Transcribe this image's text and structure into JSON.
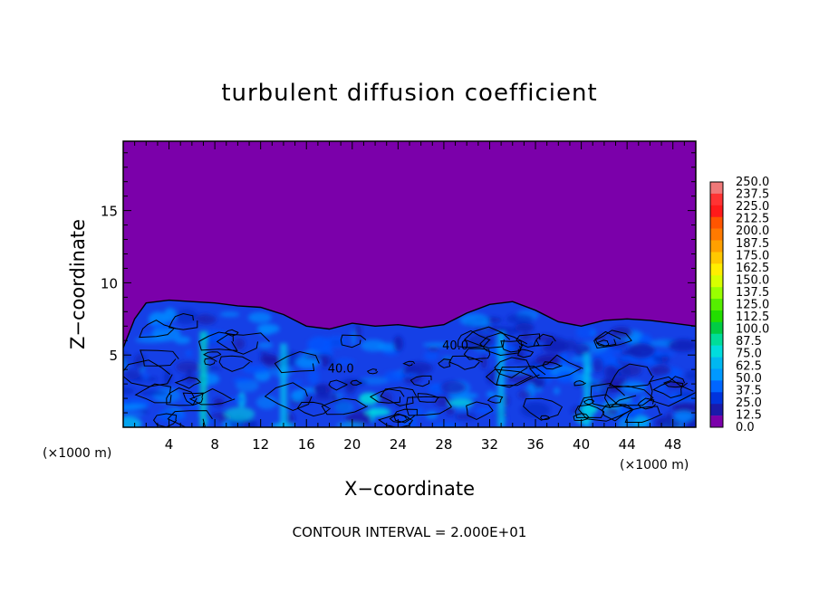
{
  "chart_data": {
    "type": "heatmap",
    "title": "turbulent diffusion coefficient",
    "xlabel": "X−coordinate",
    "ylabel": "Z−coordinate",
    "x_unit_left": "(×1000 m)",
    "x_unit_right": "(×1000 m)",
    "xlim": [
      0,
      50
    ],
    "ylim": [
      0,
      19.8
    ],
    "x_ticks": [
      4,
      8,
      12,
      16,
      20,
      24,
      28,
      32,
      36,
      40,
      44,
      48
    ],
    "y_ticks": [
      5,
      10,
      15
    ],
    "colorbar_levels": [
      "250.0",
      "237.5",
      "225.0",
      "212.5",
      "200.0",
      "187.5",
      "175.0",
      "162.5",
      "150.0",
      "137.5",
      "125.0",
      "112.5",
      "100.0",
      "87.5",
      "75.0",
      "62.5",
      "50.0",
      "37.5",
      "25.0",
      "12.5",
      "0.0"
    ],
    "colorbar_colors": [
      "#f07878",
      "#ff3333",
      "#ff1a1a",
      "#ff5500",
      "#ff7a00",
      "#ffa000",
      "#ffc800",
      "#ffee00",
      "#d8ff00",
      "#99ff00",
      "#55ee00",
      "#22dd00",
      "#00cc44",
      "#00dd99",
      "#00dddd",
      "#00b8f0",
      "#0099ff",
      "#0066ff",
      "#0033dd",
      "#1a1aaa",
      "#7b00aa"
    ],
    "background_color": "#7b00aa",
    "boundary_layer_top": [
      [
        0,
        5.5
      ],
      [
        1,
        7.5
      ],
      [
        2,
        8.6
      ],
      [
        4,
        8.8
      ],
      [
        6,
        8.7
      ],
      [
        8,
        8.6
      ],
      [
        10,
        8.4
      ],
      [
        12,
        8.3
      ],
      [
        14,
        7.8
      ],
      [
        16,
        7.0
      ],
      [
        18,
        6.8
      ],
      [
        20,
        7.2
      ],
      [
        22,
        7.0
      ],
      [
        24,
        7.1
      ],
      [
        26,
        6.9
      ],
      [
        28,
        7.1
      ],
      [
        30,
        7.9
      ],
      [
        32,
        8.5
      ],
      [
        34,
        8.7
      ],
      [
        36,
        8.1
      ],
      [
        38,
        7.3
      ],
      [
        40,
        7.0
      ],
      [
        42,
        7.4
      ],
      [
        44,
        7.5
      ],
      [
        46,
        7.4
      ],
      [
        48,
        7.2
      ],
      [
        50,
        7.0
      ]
    ],
    "contour_labels": [
      {
        "text": "40.0",
        "x": 19,
        "y": 3.8
      },
      {
        "text": "40.0",
        "x": 29,
        "y": 5.4
      }
    ],
    "footer": "CONTOUR INTERVAL = 2.000E+01"
  }
}
